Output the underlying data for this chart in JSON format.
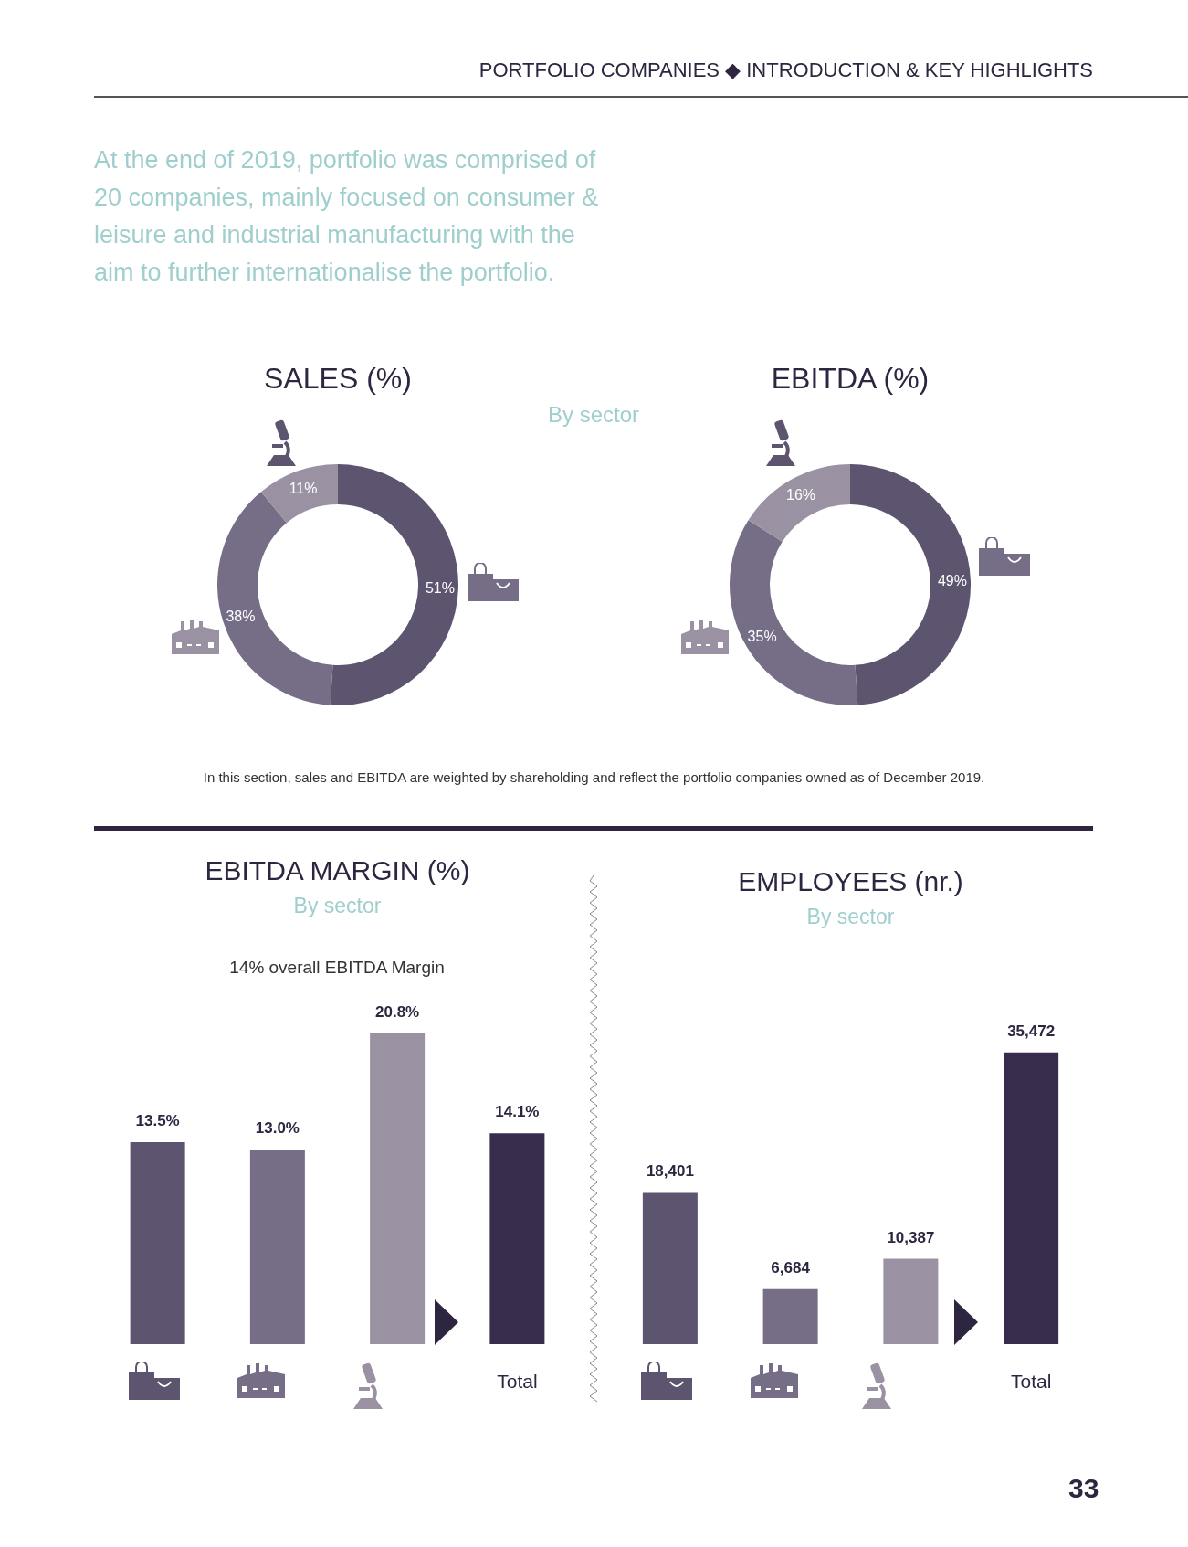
{
  "chart_data": [
    {
      "type": "donut",
      "title": "SALES (%)",
      "categories": [
        null,
        null,
        null
      ],
      "values": [
        51,
        38,
        11
      ],
      "value_labels": [
        "51%",
        "38%",
        "11%"
      ],
      "colors": [
        "#5d5470",
        "#766d87",
        "#9a91a3"
      ],
      "annotations": [
        "PORTFOLIO COMPANIES ◆ INTRODUCTION & KEY HIGHLIGHTS",
        "At the end of 2019, portfolio was comprised of 20 companies, mainly focused on consumer & leisure and industrial manufacturing with the aim to further internationalise the portfolio.",
        "By sector"
      ]
    },
    {
      "type": "donut",
      "title": "EBITDA (%)",
      "categories": [
        null,
        null,
        null
      ],
      "values": [
        49,
        35,
        16
      ],
      "value_labels": [
        "49%",
        "35%",
        "16%"
      ],
      "colors": [
        "#5d5470",
        "#766d87",
        "#9a91a3"
      ],
      "annotations": [
        "In this section, sales and EBITDA are weighted by shareholding and reflect the portfolio companies owned as of December 2019."
      ]
    },
    {
      "type": "bar",
      "title": "EBITDA MARGIN (%)",
      "subtitle": "By sector",
      "categories": [
        null,
        null,
        null,
        "Total"
      ],
      "values": [
        13.5,
        13.0,
        20.8,
        14.1
      ],
      "value_labels": [
        "13.5%",
        "13.0%",
        "20.8%",
        "14.1%"
      ],
      "colors": [
        "#5d5470",
        "#766d87",
        "#9a91a3",
        "#372c4b"
      ],
      "annotations": [
        "14% overall EBITDA Margin"
      ]
    },
    {
      "type": "bar",
      "title": "EMPLOYEES (nr.)",
      "subtitle": "By sector",
      "categories": [
        null,
        null,
        null,
        "Total"
      ],
      "values": [
        18401,
        6684,
        10387,
        35472
      ],
      "value_labels": [
        "18,401",
        "6,684",
        "10,387",
        "35,472"
      ],
      "colors": [
        "#5d5470",
        "#766d87",
        "#9a91a3",
        "#372c4b"
      ],
      "annotations": [
        "33"
      ]
    }
  ]
}
